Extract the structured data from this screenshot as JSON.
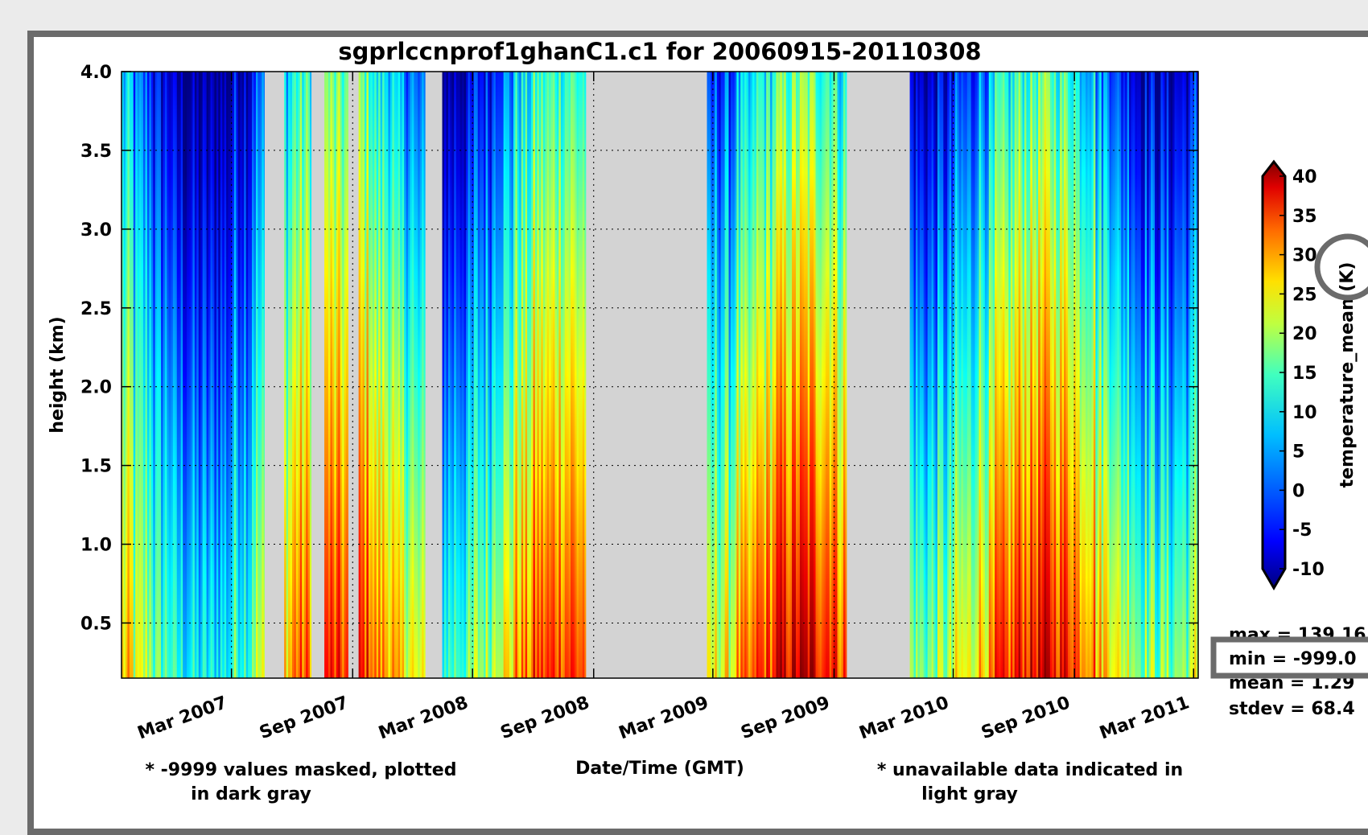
{
  "chart_data": {
    "type": "heatmap",
    "title": "sgprlccnprof1ghanC1.c1 for 20060915-20110308",
    "xlabel": "Date/Time (GMT)",
    "ylabel": "height (km)",
    "x_range": [
      "2006-09-15",
      "2011-03-08"
    ],
    "ylim": [
      0.15,
      4.0
    ],
    "y_ticks": [
      "4.0",
      "3.5",
      "3.0",
      "2.5",
      "2.0",
      "1.5",
      "1.0",
      "0.5"
    ],
    "y_tick_values": [
      4.0,
      3.5,
      3.0,
      2.5,
      2.0,
      1.5,
      1.0,
      0.5
    ],
    "x_ticks": [
      "Mar 2007",
      "Sep 2007",
      "Mar 2008",
      "Sep 2008",
      "Mar 2009",
      "Sep 2009",
      "Mar 2010",
      "Sep 2010",
      "Mar 2011"
    ],
    "x_tick_dates": [
      "2007-03-01",
      "2007-09-01",
      "2008-03-01",
      "2008-09-01",
      "2009-03-01",
      "2009-09-01",
      "2010-03-01",
      "2010-09-01",
      "2011-03-01"
    ],
    "grid": true,
    "colorbar": {
      "label": "temperature_mean (K)",
      "range": [
        -10,
        40
      ],
      "ticks": [
        "40",
        "35",
        "30",
        "25",
        "20",
        "15",
        "10",
        "5",
        "0",
        "-5",
        "-10"
      ],
      "tick_values": [
        40,
        35,
        30,
        25,
        20,
        15,
        10,
        5,
        0,
        -5,
        -10
      ],
      "colormap": "jet"
    },
    "data_periods": [
      {
        "start": "2006-09-15",
        "end": "2007-04-20",
        "surface_temp": 18,
        "top_temp": 0
      },
      {
        "start": "2007-05-20",
        "end": "2007-06-30",
        "surface_temp": 20,
        "top_temp": 2
      },
      {
        "start": "2007-07-20",
        "end": "2007-08-25",
        "surface_temp": 22,
        "top_temp": 4
      },
      {
        "start": "2007-09-10",
        "end": "2007-12-20",
        "surface_temp": 27,
        "top_temp": 8
      },
      {
        "start": "2008-01-15",
        "end": "2008-08-20",
        "surface_temp": 22,
        "top_temp": 2
      },
      {
        "start": "2009-02-20",
        "end": "2009-09-20",
        "surface_temp": 26,
        "top_temp": 4
      },
      {
        "start": "2009-12-25",
        "end": "2011-03-08",
        "surface_temp": 25,
        "top_temp": 3
      }
    ],
    "missing_color": "#d3d3d3",
    "stats": {
      "max": "max = 139.16",
      "min": "min = -999.0",
      "mean": "mean = 1.29",
      "stdev": "stdev = 68.4"
    },
    "notes": {
      "masked_line1": "* -9999 values masked, plotted",
      "masked_line2": "in dark gray",
      "unavail_line1": "* unavailable data indicated in",
      "unavail_line2": "light gray"
    }
  },
  "colors": {
    "frame_border": "#6b6b6b",
    "highlight_border": "#6b6b6b",
    "background": "#ebebeb"
  }
}
